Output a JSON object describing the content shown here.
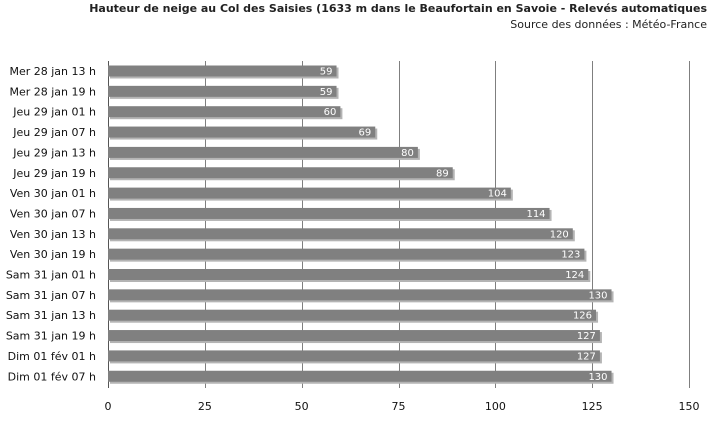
{
  "chart_data": {
    "type": "bar",
    "orientation": "horizontal",
    "title": "Hauteur de neige au Col des Saisies (1633 m dans le Beaufortain  en Savoie - Relevés automatiques",
    "subtitle": "Source des données : Météo-France",
    "categories": [
      "Mer 28 jan 13 h",
      "Mer 28 jan 19 h",
      "Jeu 29 jan 01 h",
      "Jeu 29 jan 07 h",
      "Jeu 29 jan 13 h",
      "Jeu 29 jan 19 h",
      "Ven 30 jan 01 h",
      "Ven 30 jan 07 h",
      "Ven 30 jan 13 h",
      "Ven 30 jan 19 h",
      "Sam 31 jan 01 h",
      "Sam 31 jan 07 h",
      "Sam 31 jan 13 h",
      "Sam 31 jan 19 h",
      "Dim 01 fév 01 h",
      "Dim 01 fév 07 h"
    ],
    "values": [
      59,
      59,
      60,
      69,
      80,
      89,
      104,
      114,
      120,
      123,
      124,
      130,
      126,
      127,
      127,
      130
    ],
    "xlim": [
      0,
      150
    ],
    "xticks": [
      0,
      25,
      50,
      75,
      100,
      125,
      150
    ],
    "grid": true,
    "data_labels": true,
    "bar_color": "#808080",
    "shadow_color": "#b4b4b4",
    "grid_color": "#7f7f7f"
  }
}
